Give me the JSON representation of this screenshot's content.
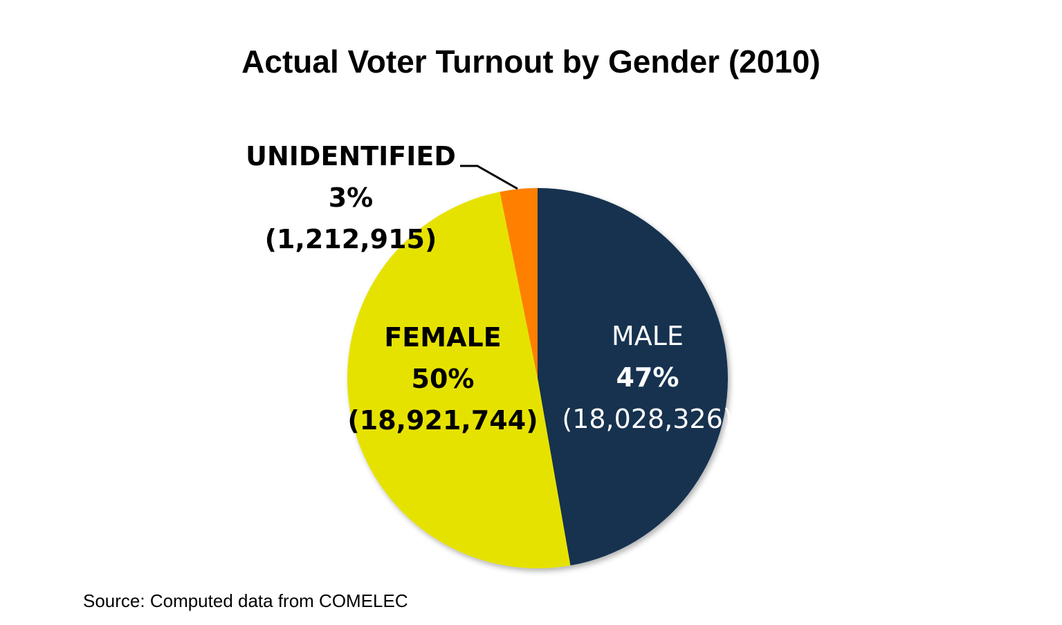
{
  "chart_data": {
    "type": "pie",
    "title": "Actual Voter Turnout by Gender (2010)",
    "slices": [
      {
        "label": "MALE",
        "percent_label": "47%",
        "value": 18028326,
        "value_label": "(18,028,326)",
        "color": "#15304f"
      },
      {
        "label": "FEMALE",
        "percent_label": "50%",
        "value": 18921744,
        "value_label": "(18,921,744)",
        "color": "#e6e200"
      },
      {
        "label": "UNIDENTIFIED",
        "percent_label": "3%",
        "value": 1212915,
        "value_label": "(1,212,915)",
        "color": "#ff7f00"
      }
    ],
    "start_angle": "12 o'clock",
    "direction": "clockwise",
    "source": "Source: Computed data from COMELEC"
  }
}
